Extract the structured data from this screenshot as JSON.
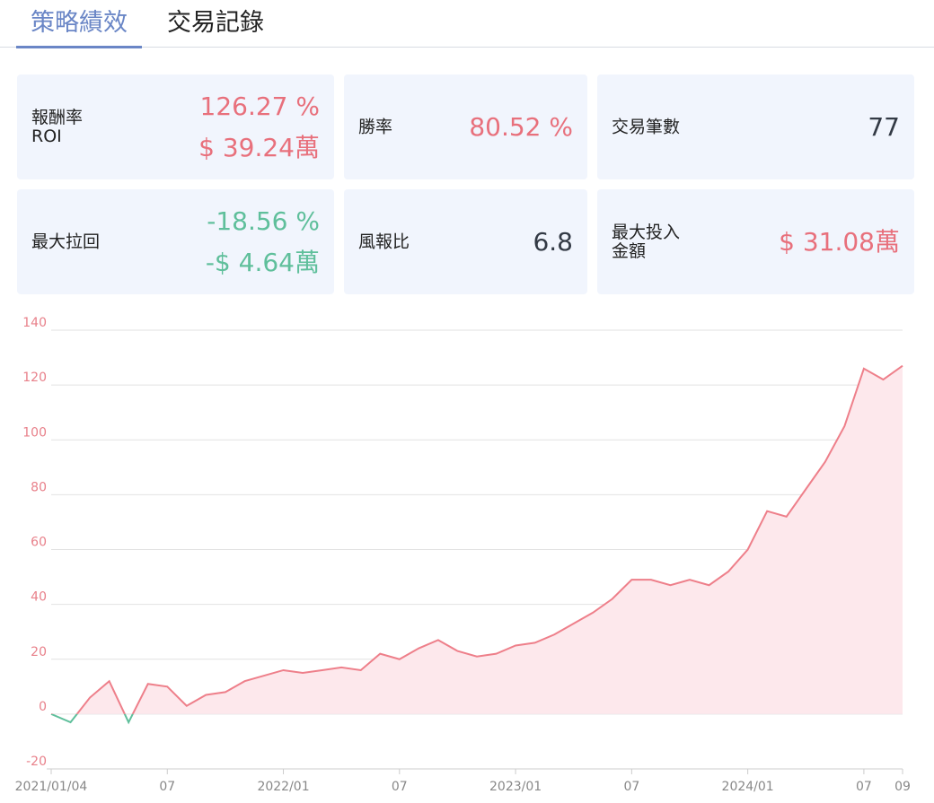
{
  "tabs": [
    {
      "label": "策略績效",
      "active": true
    },
    {
      "label": "交易記錄",
      "active": false
    }
  ],
  "cards": [
    {
      "label": [
        "報酬率",
        "ROI"
      ],
      "values": [
        "126.27 %",
        "$ 39.24萬"
      ],
      "color": "#e8707c"
    },
    {
      "label": [
        "勝率"
      ],
      "values": [
        "80.52 %"
      ],
      "color": "#e8707c"
    },
    {
      "label": [
        "交易筆數"
      ],
      "values": [
        "77"
      ],
      "color": "#333a45"
    },
    {
      "label": [
        "最大拉回"
      ],
      "values": [
        "-18.56 %",
        "-$ 4.64萬"
      ],
      "color": "#5fbf9b"
    },
    {
      "label": [
        "風報比"
      ],
      "values": [
        "6.8"
      ],
      "color": "#333a45"
    },
    {
      "label": [
        "最大投入",
        "金額"
      ],
      "values": [
        "$ 31.08萬"
      ],
      "color": "#e8707c"
    }
  ],
  "chart_data": {
    "type": "line",
    "x": [
      "2021/01",
      "2021/02",
      "2021/03",
      "2021/04",
      "2021/05",
      "2021/06",
      "2021/07",
      "2021/08",
      "2021/09",
      "2021/10",
      "2021/11",
      "2021/12",
      "2022/01",
      "2022/02",
      "2022/03",
      "2022/04",
      "2022/05",
      "2022/06",
      "2022/07",
      "2022/08",
      "2022/09",
      "2022/10",
      "2022/11",
      "2022/12",
      "2023/01",
      "2023/02",
      "2023/03",
      "2023/04",
      "2023/05",
      "2023/06",
      "2023/07",
      "2023/08",
      "2023/09",
      "2023/10",
      "2023/11",
      "2023/12",
      "2024/01",
      "2024/02",
      "2024/03",
      "2024/04",
      "2024/05",
      "2024/06",
      "2024/07",
      "2024/08",
      "2024/09"
    ],
    "series": [
      {
        "color": "#ee7f8a",
        "negative_color": "#5fbf9b",
        "fill": "#fde8ec",
        "values": [
          0,
          -3,
          6,
          12,
          -3,
          11,
          10,
          3,
          7,
          8,
          12,
          14,
          16,
          15,
          16,
          17,
          16,
          22,
          20,
          24,
          27,
          23,
          21,
          22,
          25,
          26,
          29,
          33,
          37,
          42,
          49,
          49,
          47,
          49,
          47,
          52,
          60,
          74,
          72,
          82,
          92,
          105,
          126,
          122,
          127
        ]
      }
    ],
    "ylim": [
      -20,
      140
    ],
    "yticks": [
      -20,
      0,
      20,
      40,
      60,
      80,
      100,
      120,
      140
    ],
    "xticks": [
      {
        "value": "2021/01",
        "label": "2021/01/04"
      },
      {
        "value": "2021/07",
        "label": "07"
      },
      {
        "value": "2022/01",
        "label": "2022/01"
      },
      {
        "value": "2022/07",
        "label": "07"
      },
      {
        "value": "2023/01",
        "label": "2023/01"
      },
      {
        "value": "2023/07",
        "label": "07"
      },
      {
        "value": "2024/01",
        "label": "2024/01"
      },
      {
        "value": "2024/07",
        "label": "07"
      },
      {
        "value": "2024/09",
        "label": "09"
      }
    ],
    "grid": true
  }
}
